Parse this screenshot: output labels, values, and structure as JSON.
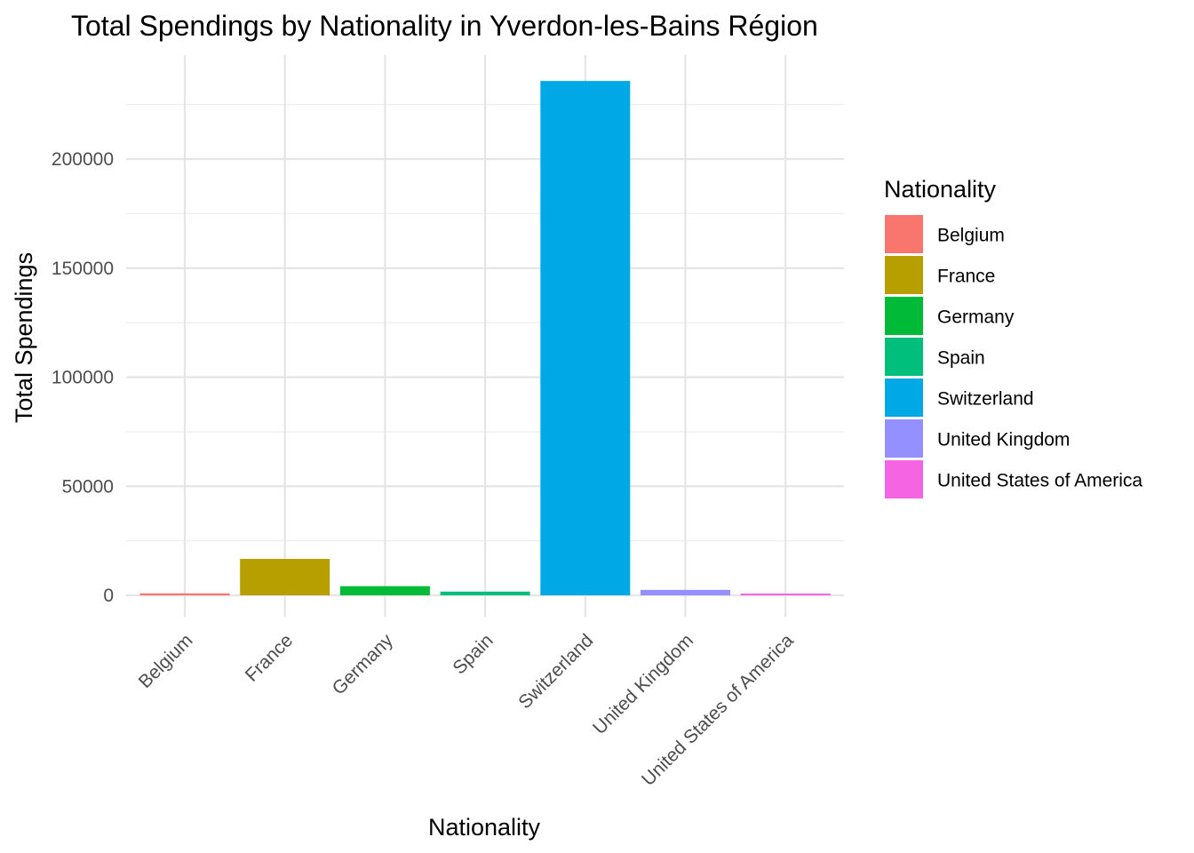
{
  "chart_data": {
    "type": "bar",
    "title": "Total Spendings by Nationality in Yverdon-les-Bains Région",
    "xlabel": "Nationality",
    "ylabel": "Total Spendings",
    "categories": [
      "Belgium",
      "France",
      "Germany",
      "Spain",
      "Switzerland",
      "United Kingdom",
      "United States of America"
    ],
    "values": [
      900,
      16700,
      4200,
      1700,
      235800,
      2500,
      500
    ],
    "colors": [
      "#F8766D",
      "#B79F00",
      "#00BA38",
      "#00BF7D",
      "#00A9E6",
      "#9590FF",
      "#F564E3"
    ],
    "ylim": [
      -10000,
      248000
    ],
    "yticks": [
      0,
      50000,
      100000,
      150000,
      200000
    ],
    "ytick_labels": [
      "0",
      "50000",
      "100000",
      "150000",
      "200000"
    ],
    "grid": true,
    "legend": {
      "title": "Nationality",
      "position": "right",
      "entries": [
        "Belgium",
        "France",
        "Germany",
        "Spain",
        "Switzerland",
        "United Kingdom",
        "United States of America"
      ]
    }
  }
}
